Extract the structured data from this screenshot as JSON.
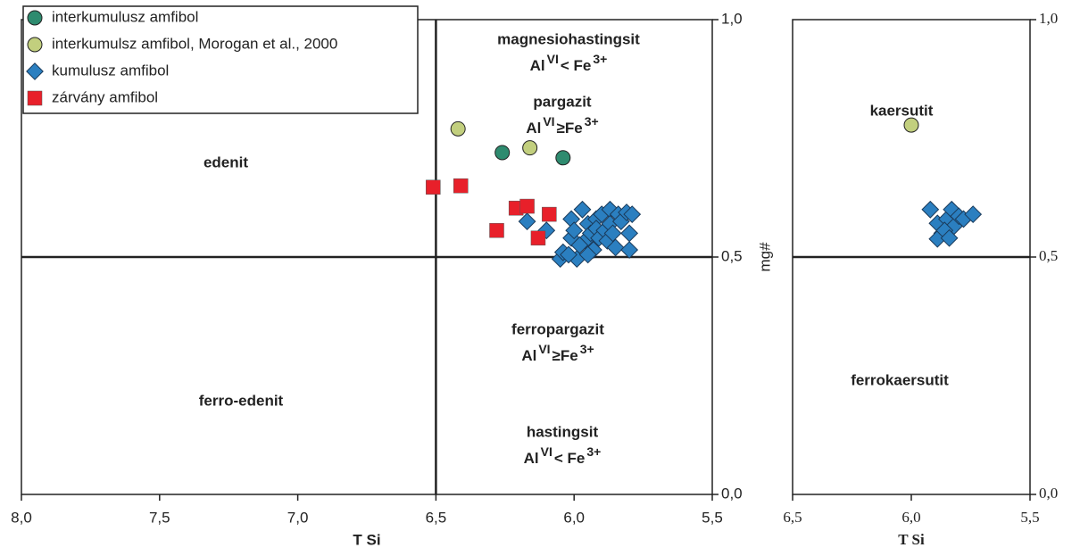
{
  "chart_data": [
    {
      "type": "scatter",
      "x_label": "T Si",
      "y_label": "mg#",
      "xlim": [
        8.0,
        5.5
      ],
      "ylim": [
        0,
        1
      ],
      "xticks": [
        {
          "value": 8.0,
          "label": "8,0"
        },
        {
          "value": 7.5,
          "label": "7,5"
        },
        {
          "value": 7.0,
          "label": "7,0"
        },
        {
          "value": 6.5,
          "label": "6,5"
        },
        {
          "value": 6.0,
          "label": "6,0"
        },
        {
          "value": 5.5,
          "label": "5,5"
        }
      ],
      "yticks": [
        {
          "value": 1.0,
          "label": "1,0"
        },
        {
          "value": 0.5,
          "label": "0,5"
        },
        {
          "value": 0.0,
          "label": "0,0"
        }
      ],
      "x_divider": 6.5,
      "y_divider": 0.5,
      "legend": "upper left",
      "annotations": [
        {
          "text": "edenit"
        },
        {
          "text": "ferro-edenit"
        },
        {
          "text": "magnesiohastingsit",
          "condition": [
            "Al",
            "VI",
            "< Fe",
            "3+"
          ]
        },
        {
          "text": "pargazit",
          "condition": [
            "Al",
            "VI",
            "≥Fe",
            "3+"
          ]
        },
        {
          "text": "ferropargazit",
          "condition": [
            "Al",
            "VI",
            "≥Fe",
            "3+"
          ]
        },
        {
          "text": "hastingsit",
          "condition": [
            "Al",
            "VI",
            "< Fe",
            "3+"
          ]
        }
      ],
      "series": [
        {
          "name": "interkumulusz amfibol",
          "color": "#2e8b6f",
          "marker": "circle",
          "x": [
            6.26,
            6.04
          ],
          "values": [
            0.72,
            0.709
          ]
        },
        {
          "name": "interkumulsz amfibol, Morogan et al., 2000",
          "color": "#c2cf7e",
          "marker": "circle",
          "x": [
            6.42,
            6.16
          ],
          "values": [
            0.77,
            0.73
          ]
        },
        {
          "name": "kumulusz amfibol",
          "color": "#2b7fc0",
          "marker": "diamond",
          "x": [
            6.17,
            6.1,
            6.05,
            6.04,
            6.01,
            6.01,
            6.0,
            5.99,
            5.97,
            5.96,
            5.95,
            5.94,
            5.93,
            5.92,
            5.92,
            5.91,
            5.9,
            5.89,
            5.88,
            5.87,
            5.87,
            5.86,
            5.85,
            5.84,
            5.83,
            5.81,
            5.8,
            5.8,
            5.79,
            5.95,
            6.02,
            5.98
          ],
          "values": [
            0.575,
            0.556,
            0.496,
            0.51,
            0.58,
            0.54,
            0.556,
            0.496,
            0.6,
            0.534,
            0.57,
            0.55,
            0.515,
            0.58,
            0.56,
            0.54,
            0.59,
            0.556,
            0.534,
            0.6,
            0.57,
            0.55,
            0.52,
            0.59,
            0.575,
            0.594,
            0.55,
            0.515,
            0.59,
            0.505,
            0.505,
            0.525
          ]
        },
        {
          "name": "zárvány amfibol",
          "color": "#e8202a",
          "marker": "square",
          "x": [
            6.51,
            6.41,
            6.21,
            6.17,
            6.28,
            6.09,
            6.13
          ],
          "values": [
            0.647,
            0.65,
            0.603,
            0.607,
            0.556,
            0.59,
            0.54
          ]
        }
      ]
    },
    {
      "type": "scatter",
      "x_label": "T Si",
      "xlim": [
        6.5,
        5.5
      ],
      "ylim": [
        0,
        1
      ],
      "xticks": [
        {
          "value": 6.5,
          "label": "6,5"
        },
        {
          "value": 6.0,
          "label": "6,0"
        },
        {
          "value": 5.5,
          "label": "5,5"
        }
      ],
      "yticks": [
        {
          "value": 1.0,
          "label": "1,0"
        },
        {
          "value": 0.5,
          "label": "0,5"
        },
        {
          "value": 0.0,
          "label": "0,0"
        }
      ],
      "y_divider": 0.5,
      "annotations": [
        {
          "text": "kaersutit"
        },
        {
          "text": "ferrokaersutit"
        }
      ],
      "series": [
        {
          "color": "#c2cf7e",
          "marker": "circle",
          "x": [
            6.0
          ],
          "values": [
            0.778
          ]
        },
        {
          "color": "#2b7fc0",
          "marker": "diamond",
          "x": [
            5.92,
            5.89,
            5.87,
            5.89,
            5.85,
            5.83,
            5.82,
            5.8,
            5.78,
            5.74,
            5.86,
            5.84
          ],
          "values": [
            0.6,
            0.571,
            0.55,
            0.538,
            0.58,
            0.6,
            0.565,
            0.586,
            0.58,
            0.59,
            0.556,
            0.54
          ]
        }
      ]
    }
  ]
}
